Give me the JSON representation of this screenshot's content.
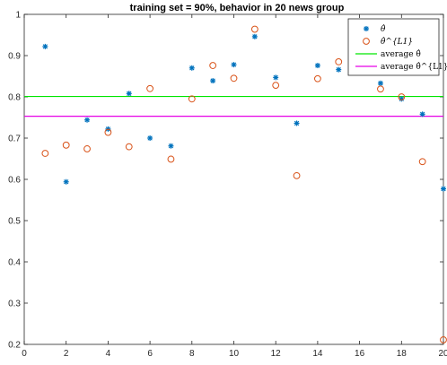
{
  "chart_data": {
    "type": "scatter",
    "title": "training set = 90%, behavior in 20 news group",
    "xlabel": "",
    "ylabel": "",
    "xlim": [
      0,
      20
    ],
    "ylim": [
      0.2,
      1.0
    ],
    "xticks": [
      "0",
      "2",
      "4",
      "6",
      "8",
      "10",
      "12",
      "14",
      "16",
      "18",
      "20"
    ],
    "yticks": [
      "0.2",
      "0.3",
      "0.4",
      "0.5",
      "0.6",
      "0.7",
      "0.8",
      "0.9",
      "1"
    ],
    "x": [
      1,
      2,
      3,
      4,
      5,
      6,
      7,
      8,
      9,
      10,
      11,
      12,
      13,
      14,
      15,
      16,
      17,
      18,
      19,
      20
    ],
    "series": [
      {
        "name": "θ̂",
        "marker": "asterisk",
        "color": "#0072BD",
        "values": [
          0.922,
          0.594,
          0.744,
          0.722,
          0.808,
          0.7,
          0.681,
          0.87,
          0.839,
          0.878,
          0.946,
          0.847,
          0.736,
          0.876,
          0.866,
          0.869,
          0.833,
          0.795,
          0.758,
          0.577
        ]
      },
      {
        "name": "θ̂^{L1}",
        "marker": "circle",
        "color": "#D95319",
        "values": [
          0.663,
          0.683,
          0.674,
          0.714,
          0.679,
          0.82,
          0.649,
          0.795,
          0.876,
          0.845,
          0.964,
          0.828,
          0.609,
          0.844,
          0.885,
          0.879,
          0.819,
          0.8,
          0.643,
          0.211
        ]
      }
    ],
    "reference_lines": [
      {
        "name": "average θ̂",
        "y": 0.801,
        "color": "#00E600"
      },
      {
        "name": "average θ̂^{L1}",
        "y": 0.753,
        "color": "#E600E6"
      }
    ],
    "legend": {
      "position": "top-right",
      "entries": [
        "θ̂",
        "θ̂^{L1}",
        "average θ̂",
        "average θ̂^{L1}"
      ]
    },
    "grid": false
  }
}
